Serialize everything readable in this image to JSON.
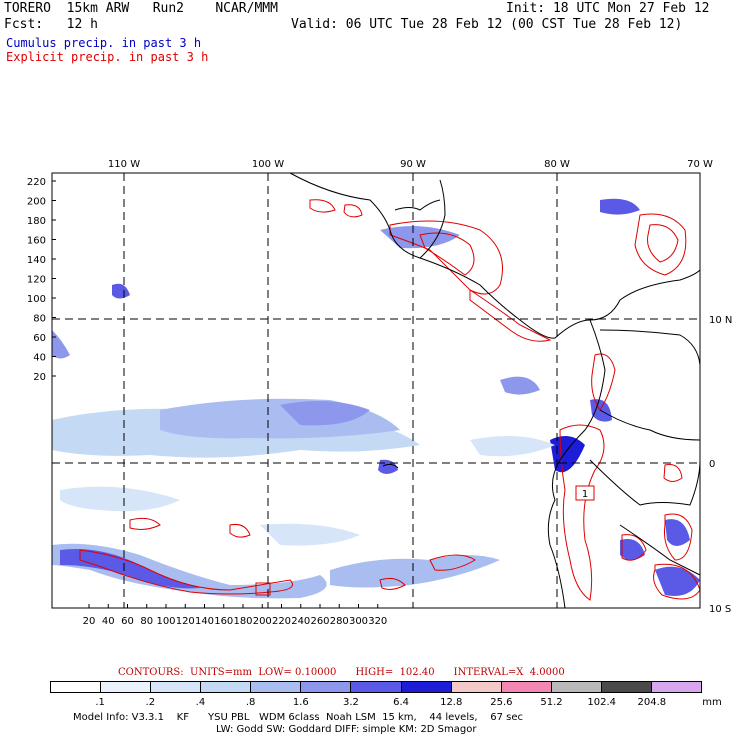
{
  "header": {
    "model": "TORERO  15km ARW   Run2    NCAR/MMM",
    "init": "Init: 18 UTC Mon 27 Feb 12",
    "fcst": "Fcst:   12 h",
    "valid": "Valid: 06 UTC Tue 28 Feb 12 (00 CST Tue 28 Feb 12)",
    "line1": "Cumulus precip. in past 3 h",
    "line2": "Explicit precip. in past 3 h",
    "line1_color": "#0000c8",
    "line2_color": "#e00000"
  },
  "axes": {
    "top_lon_labels": [
      "110 W",
      "100 W",
      "90 W",
      "80 W",
      "70 W"
    ],
    "right_lat_labels": [
      "10 N",
      "0",
      "10 S"
    ],
    "y_ticks": [
      "220",
      "200",
      "180",
      "160",
      "140",
      "120",
      "100",
      "80",
      "60",
      "40",
      "20"
    ],
    "x_ticks": [
      "20",
      "40",
      "60",
      "80",
      "100",
      "120",
      "140",
      "160",
      "180",
      "200",
      "220",
      "240",
      "260",
      "280",
      "300",
      "320"
    ]
  },
  "contour_note": "CONTOURS:  UNITS=mm  LOW= 0.10000      HIGH=  102.40      INTERVAL=X  4.0000",
  "colorbar": {
    "labels": [
      ".1",
      ".2",
      ".4",
      ".8",
      "1.6",
      "3.2",
      "6.4",
      "12.8",
      "25.6",
      "51.2",
      "102.4",
      "204.8"
    ],
    "unit": "mm",
    "colors": [
      "#ffffff",
      "#eaf2fb",
      "#d6e6f8",
      "#c3d9f4",
      "#a9bdf0",
      "#8d97ec",
      "#5a5ae6",
      "#1d1dd8",
      "#f6c9c9",
      "#f287b4",
      "#b9b9b9",
      "#4a4a4a",
      "#d7a6ee"
    ]
  },
  "footer": {
    "line1": "Model Info: V3.3.1    KF      YSU PBL   WDM 6class  Noah LSM  15 km,    44 levels,    67 sec",
    "line2": "LW: Godd SW: Goddard DIFF: simple KM: 2D Smagor"
  },
  "labels": {
    "box_label": "1"
  }
}
